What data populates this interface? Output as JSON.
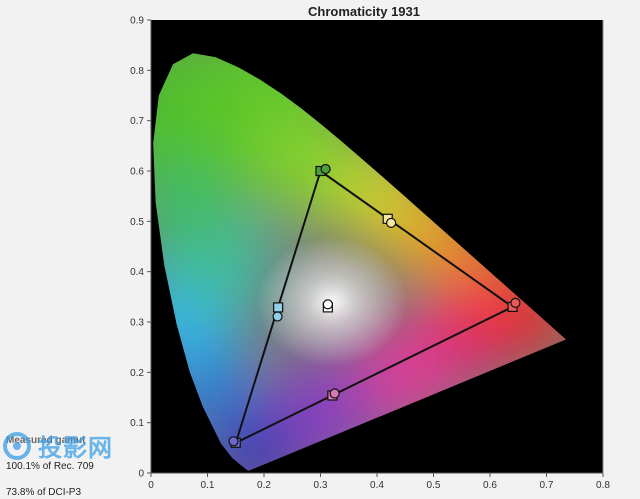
{
  "chart_data": {
    "type": "scatter",
    "title": "Chromaticity 1931",
    "xlim": [
      0,
      0.8
    ],
    "ylim": [
      0,
      0.9
    ],
    "x_ticks": [
      "0",
      "0.1",
      "0.2",
      "0.3",
      "0.4",
      "0.5",
      "0.6",
      "0.7",
      "0.8"
    ],
    "y_ticks": [
      "0",
      "0.1",
      "0.2",
      "0.3",
      "0.4",
      "0.5",
      "0.6",
      "0.7",
      "0.8",
      "0.9"
    ],
    "grid": false,
    "series": [
      {
        "marker": "square",
        "points": [
          {
            "x": 0.64,
            "y": 0.33
          },
          {
            "x": 0.3,
            "y": 0.6
          },
          {
            "x": 0.15,
            "y": 0.06
          },
          {
            "x": 0.313,
            "y": 0.329
          },
          {
            "x": 0.419,
            "y": 0.505
          },
          {
            "x": 0.321,
            "y": 0.154
          },
          {
            "x": 0.225,
            "y": 0.329
          }
        ]
      },
      {
        "marker": "circle",
        "points": [
          {
            "x": 0.645,
            "y": 0.338
          },
          {
            "x": 0.309,
            "y": 0.604
          },
          {
            "x": 0.146,
            "y": 0.063
          },
          {
            "x": 0.313,
            "y": 0.335
          },
          {
            "x": 0.425,
            "y": 0.497
          },
          {
            "x": 0.325,
            "y": 0.158
          },
          {
            "x": 0.224,
            "y": 0.311
          }
        ]
      }
    ],
    "gamut_triangle": [
      {
        "x": 0.3,
        "y": 0.6
      },
      {
        "x": 0.64,
        "y": 0.33
      },
      {
        "x": 0.15,
        "y": 0.06
      }
    ],
    "legend": {
      "title": "Measured gamut",
      "rows": [
        "100.1% of Rec. 709",
        "73.8% of DCI-P3"
      ]
    }
  },
  "watermark": {
    "icon": "circle-logo-icon",
    "text": "投影网",
    "color": "#3aa0e6"
  }
}
